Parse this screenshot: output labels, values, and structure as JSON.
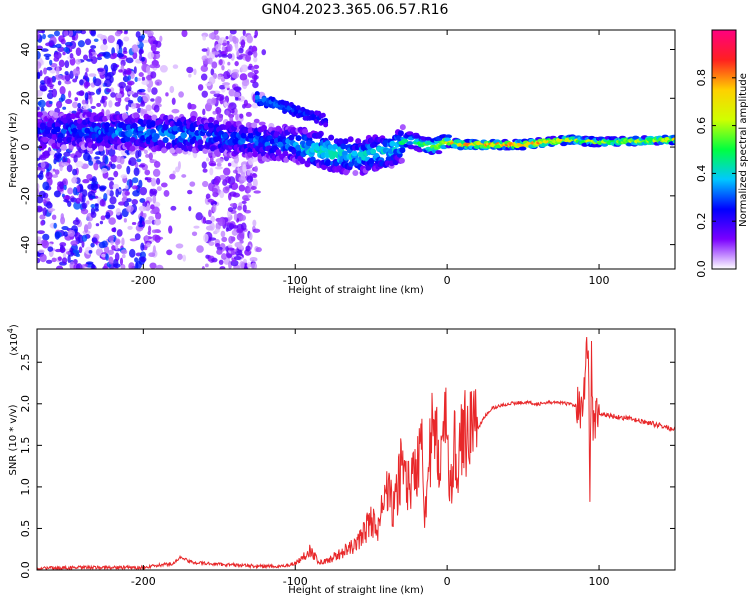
{
  "title": "GN04.2023.365.06.57.R16",
  "chart_data": [
    {
      "type": "heatmap",
      "xlabel": "Height of straight line (km)",
      "ylabel": "Frequency (Hz)",
      "xlim": [
        -270,
        150
      ],
      "ylim": [
        -50,
        48
      ],
      "xticks": [
        -200,
        -100,
        0,
        100
      ],
      "yticks": [
        -40,
        -20,
        0,
        20,
        40
      ],
      "colorbar": {
        "label": "Normalized spectral amplitude",
        "range": [
          0,
          1
        ],
        "ticks": [
          0.0,
          0.2,
          0.4,
          0.6,
          0.8
        ],
        "colormap": [
          "#ffffff",
          "#7a00ff",
          "#0000ff",
          "#00c8ff",
          "#00ff40",
          "#d0ff00",
          "#ffd000",
          "#ff2020",
          "#ff0080"
        ]
      },
      "ridge": [
        {
          "x": -270,
          "f": 7,
          "a": 0.25
        },
        {
          "x": -200,
          "f": 6,
          "a": 0.35
        },
        {
          "x": -170,
          "f": 5,
          "a": 0.35
        },
        {
          "x": -150,
          "f": 4,
          "a": 0.3
        },
        {
          "x": -120,
          "f": 2,
          "a": 0.3
        },
        {
          "x": -100,
          "f": 1,
          "a": 0.35
        },
        {
          "x": -80,
          "f": -2,
          "a": 0.45
        },
        {
          "x": -60,
          "f": -4,
          "a": 0.4
        },
        {
          "x": -40,
          "f": -2,
          "a": 0.4
        },
        {
          "x": -25,
          "f": 3,
          "a": 0.45
        },
        {
          "x": -10,
          "f": 0,
          "a": 0.6
        },
        {
          "x": 0,
          "f": 2,
          "a": 0.7
        },
        {
          "x": 10,
          "f": 1,
          "a": 0.8
        },
        {
          "x": 50,
          "f": 1,
          "a": 0.85
        },
        {
          "x": 80,
          "f": 3,
          "a": 0.7
        },
        {
          "x": 100,
          "f": 2,
          "a": 0.6
        },
        {
          "x": 150,
          "f": 3,
          "a": 0.7
        }
      ],
      "upper_branch": [
        {
          "x": -125,
          "f": 20,
          "a": 0.35
        },
        {
          "x": -100,
          "f": 15,
          "a": 0.3
        },
        {
          "x": -80,
          "f": 11,
          "a": 0.25
        }
      ]
    },
    {
      "type": "line",
      "xlabel": "Height of straight line (km)",
      "ylabel": "SNR (10 * v/v)",
      "y_multiplier": "(x10",
      "y_exponent": "4",
      "y_exponent_close": ")",
      "xlim": [
        -270,
        150
      ],
      "ylim": [
        0,
        2.9
      ],
      "xticks": [
        -200,
        -100,
        0,
        100
      ],
      "yticks": [
        0.0,
        0.5,
        1.0,
        1.5,
        2.0,
        2.5
      ],
      "color": "#e8282a",
      "series": [
        {
          "x": [
            -270,
            -240,
            -200,
            -180,
            -175,
            -170,
            -160,
            -130,
            -110,
            -100,
            -95,
            -90,
            -85,
            -80,
            -70,
            -60,
            -55,
            -50,
            -45,
            -40,
            -35,
            -30,
            -25,
            -20,
            -17,
            -15,
            -10,
            -5,
            0,
            3,
            5,
            8,
            10,
            15,
            20,
            25,
            30,
            40,
            50,
            60,
            70,
            80,
            85,
            88,
            90,
            92,
            93,
            94,
            95,
            96,
            98,
            100,
            110,
            120,
            130,
            140,
            150
          ],
          "y": [
            0.02,
            0.03,
            0.03,
            0.08,
            0.16,
            0.1,
            0.08,
            0.05,
            0.04,
            0.08,
            0.15,
            0.25,
            0.1,
            0.1,
            0.2,
            0.3,
            0.45,
            0.6,
            0.5,
            1.0,
            0.7,
            1.3,
            1.0,
            1.2,
            1.9,
            0.7,
            1.6,
            1.4,
            1.7,
            0.9,
            1.5,
            1.3,
            1.6,
            1.8,
            1.7,
            1.85,
            1.95,
            2.0,
            2.02,
            2.0,
            2.02,
            2.0,
            1.98,
            1.95,
            2.1,
            2.7,
            2.5,
            1.0,
            2.6,
            1.7,
            1.85,
            1.88,
            1.85,
            1.82,
            1.78,
            1.74,
            1.68
          ]
        }
      ]
    }
  ]
}
